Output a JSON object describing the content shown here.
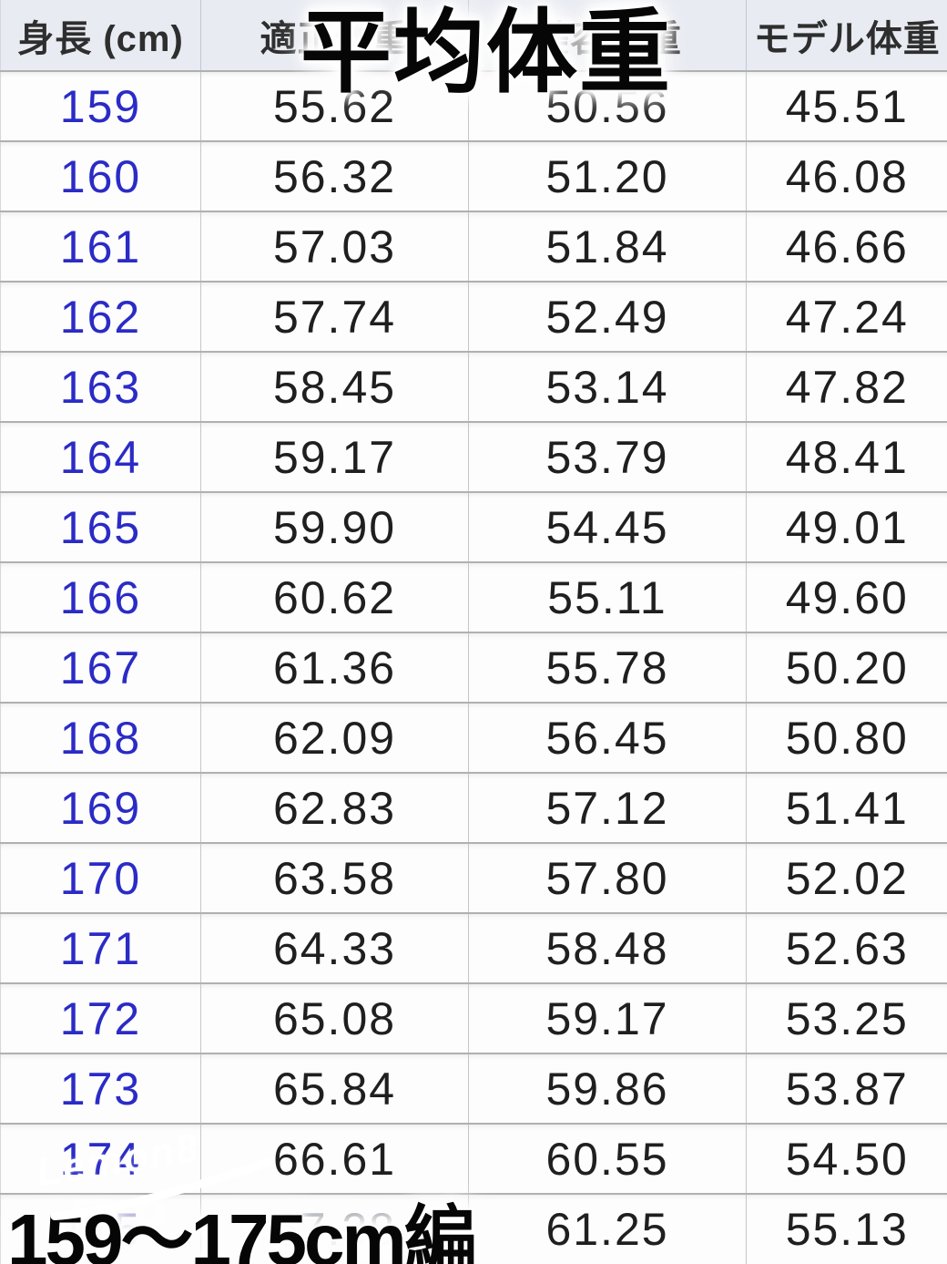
{
  "chart_data": {
    "type": "table",
    "title": "平均体重",
    "caption": "159～175cm編",
    "columns": [
      "身長 (cm)",
      "適正体重",
      "美容体重",
      "モデル体重"
    ],
    "rows": [
      [
        "159",
        "55.62",
        "50.56",
        "45.51"
      ],
      [
        "160",
        "56.32",
        "51.20",
        "46.08"
      ],
      [
        "161",
        "57.03",
        "51.84",
        "46.66"
      ],
      [
        "162",
        "57.74",
        "52.49",
        "47.24"
      ],
      [
        "163",
        "58.45",
        "53.14",
        "47.82"
      ],
      [
        "164",
        "59.17",
        "53.79",
        "48.41"
      ],
      [
        "165",
        "59.90",
        "54.45",
        "49.01"
      ],
      [
        "166",
        "60.62",
        "55.11",
        "49.60"
      ],
      [
        "167",
        "61.36",
        "55.78",
        "50.20"
      ],
      [
        "168",
        "62.09",
        "56.45",
        "50.80"
      ],
      [
        "169",
        "62.83",
        "57.12",
        "51.41"
      ],
      [
        "170",
        "63.58",
        "57.80",
        "52.02"
      ],
      [
        "171",
        "64.33",
        "58.48",
        "52.63"
      ],
      [
        "172",
        "65.08",
        "59.17",
        "53.25"
      ],
      [
        "173",
        "65.84",
        "59.86",
        "53.87"
      ],
      [
        "174",
        "66.61",
        "60.55",
        "54.50"
      ],
      [
        "175",
        "67.38",
        "61.25",
        "55.13"
      ]
    ]
  },
  "overlays": {
    "title": "平均体重",
    "caption": "159～175cm編"
  },
  "watermark": {
    "brand": "Lemon8"
  },
  "colors": {
    "header_bg": "#e8ebf2",
    "link_blue": "#2b2bc6",
    "grid_line": "#b0b0b0",
    "cell_text": "#1f1f1f",
    "overlay_text": "#060606",
    "watermark_text": "#ffffff"
  }
}
